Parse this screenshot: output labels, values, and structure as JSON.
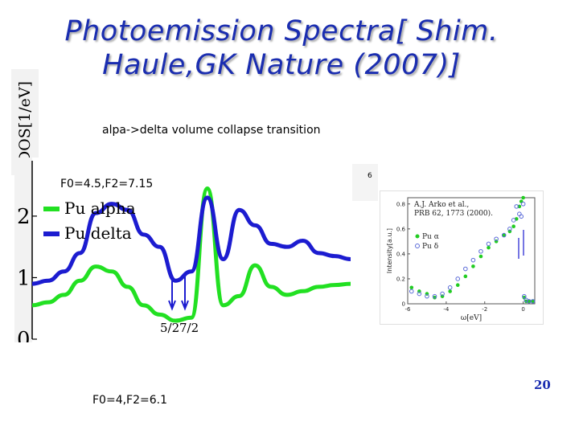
{
  "slide": {
    "title_line1": "Photoemission Spectra[ Shim.",
    "title_line2": "Haule,GK Nature (2007)]",
    "subtitle": "alpa->delta volume collapse transition",
    "param_top": "F0=4.5,F2=7.15",
    "param_bottom": "F0=4,F2=6.1",
    "slide_number": "20",
    "ylabel": "DOS[1/eV]",
    "edge_tick": "6"
  },
  "colors": {
    "title": "#1a2db0",
    "pu_alpha": "#22e022",
    "pu_delta": "#1c1cd0",
    "inset_alpha": "#22cc22",
    "inset_delta": "#5a6ad8"
  },
  "chart_data": [
    {
      "type": "line",
      "title": "",
      "xlabel": "",
      "ylabel": "DOS[1/eV]",
      "ylim": [
        0,
        2.9
      ],
      "y_ticks": [
        "0",
        "1",
        "2"
      ],
      "legend": [
        "Pu alpha",
        "Pu delta"
      ],
      "annotations": [
        "5/2",
        "7/2"
      ],
      "x": [
        0,
        5,
        10,
        15,
        20,
        25,
        30,
        35,
        40,
        45,
        50,
        55,
        60,
        65,
        70,
        75,
        80,
        85,
        90,
        95,
        100
      ],
      "series": [
        {
          "name": "Pu alpha",
          "values": [
            0.55,
            0.6,
            0.72,
            0.95,
            1.18,
            1.1,
            0.85,
            0.55,
            0.4,
            0.3,
            0.35,
            2.45,
            0.55,
            0.7,
            1.2,
            0.85,
            0.72,
            0.78,
            0.85,
            0.88,
            0.9
          ]
        },
        {
          "name": "Pu delta",
          "values": [
            0.9,
            0.95,
            1.1,
            1.4,
            2.05,
            2.2,
            2.1,
            1.7,
            1.5,
            0.95,
            1.1,
            2.3,
            1.3,
            2.1,
            1.85,
            1.55,
            1.5,
            1.6,
            1.4,
            1.35,
            1.3
          ]
        }
      ]
    },
    {
      "type": "scatter",
      "title": "A.J. Arko et al.,",
      "subtitle": "PRB 62, 1773 (2000).",
      "xlabel": "ω[eV]",
      "ylabel": "Intensity[a.u.]",
      "xlim": [
        -6,
        0.6
      ],
      "ylim": [
        0,
        0.85
      ],
      "x_ticks": [
        "-6",
        "-4",
        "-2",
        "0"
      ],
      "y_ticks": [
        "0",
        "0.2",
        "0.4",
        "0.6",
        "0.8"
      ],
      "legend": [
        "Pu α",
        "Pu δ"
      ],
      "series": [
        {
          "name": "Pu α",
          "x": [
            -5.8,
            -5.4,
            -5.0,
            -4.6,
            -4.2,
            -3.8,
            -3.4,
            -3.0,
            -2.6,
            -2.2,
            -1.8,
            -1.4,
            -1.0,
            -0.7,
            -0.5,
            -0.35,
            -0.2,
            -0.1,
            0.0,
            0.05,
            0.15,
            0.3,
            0.5
          ],
          "values": [
            0.13,
            0.1,
            0.08,
            0.05,
            0.06,
            0.1,
            0.15,
            0.22,
            0.3,
            0.38,
            0.45,
            0.5,
            0.55,
            0.58,
            0.62,
            0.68,
            0.78,
            0.82,
            0.85,
            0.05,
            0.02,
            0.02,
            0.02
          ]
        },
        {
          "name": "Pu δ",
          "x": [
            -5.8,
            -5.4,
            -5.0,
            -4.6,
            -4.2,
            -3.8,
            -3.4,
            -3.0,
            -2.6,
            -2.2,
            -1.8,
            -1.4,
            -1.0,
            -0.7,
            -0.5,
            -0.35,
            -0.2,
            -0.1,
            0.0,
            0.05,
            0.15,
            0.3,
            0.5
          ],
          "values": [
            0.1,
            0.08,
            0.06,
            0.06,
            0.08,
            0.13,
            0.2,
            0.28,
            0.35,
            0.42,
            0.48,
            0.52,
            0.55,
            0.6,
            0.67,
            0.78,
            0.72,
            0.7,
            0.8,
            0.06,
            0.03,
            0.02,
            0.02
          ]
        }
      ]
    }
  ]
}
